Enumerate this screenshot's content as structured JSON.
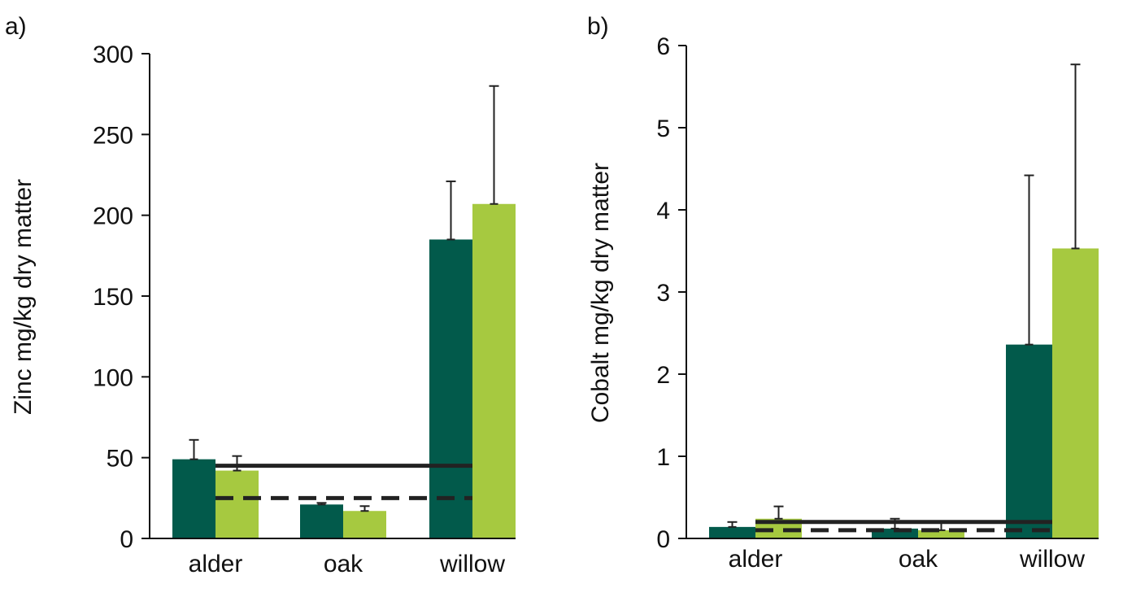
{
  "colors": {
    "series_dark": "#025a4b",
    "series_light": "#a6c940",
    "axis": "#111111",
    "error_bar": "#222222",
    "ref_line": "#222222"
  },
  "chart_data": [
    {
      "type": "bar",
      "panel_label": "a)",
      "title": "",
      "xlabel": "",
      "ylabel": "Zinc mg/kg dry matter",
      "ylim": [
        0,
        300
      ],
      "yticks": [
        "0",
        "50",
        "100",
        "150",
        "200",
        "250",
        "300"
      ],
      "grid": false,
      "legend": "none",
      "categories": [
        "alder",
        "oak",
        "willow"
      ],
      "series": [
        {
          "values": [
            49,
            21,
            185
          ],
          "errors": [
            12,
            1,
            36
          ]
        },
        {
          "values": [
            42,
            17,
            207
          ],
          "errors": [
            9,
            3,
            73
          ]
        }
      ],
      "reference_lines": [
        {
          "style": "solid",
          "value": 45,
          "from_category": "alder",
          "to_category": "willow"
        },
        {
          "style": "dashed",
          "value": 25,
          "from_category": "alder",
          "to_category": "willow"
        }
      ]
    },
    {
      "type": "bar",
      "panel_label": "b)",
      "title": "",
      "xlabel": "",
      "ylabel": "Cobalt mg/kg dry matter",
      "ylim": [
        0,
        6
      ],
      "yticks": [
        "0",
        "1",
        "2",
        "3",
        "4",
        "5",
        "6"
      ],
      "grid": false,
      "legend": "none",
      "categories": [
        "alder",
        "oak",
        "willow"
      ],
      "series": [
        {
          "values": [
            0.14,
            0.12,
            2.36
          ],
          "errors": [
            0.06,
            0.12,
            2.06
          ]
        },
        {
          "values": [
            0.24,
            0.1,
            3.53
          ],
          "errors": [
            0.15,
            0.1,
            2.24
          ]
        }
      ],
      "reference_lines": [
        {
          "style": "solid",
          "value": 0.2,
          "from_category": "alder",
          "to_category": "willow"
        },
        {
          "style": "dashed",
          "value": 0.1,
          "from_category": "alder",
          "to_category": "willow"
        }
      ]
    }
  ]
}
